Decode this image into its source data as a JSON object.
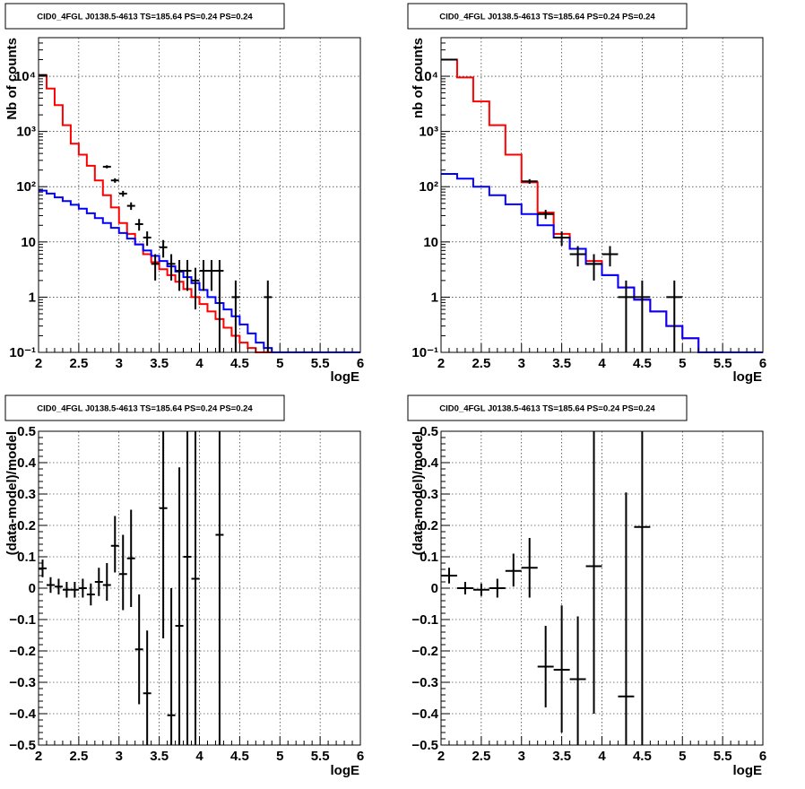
{
  "chart_data": [
    {
      "id": "top-left",
      "type": "line",
      "title": "CID0_4FGL J0138.5-4613 TS=185.64 PS=0.24 PS=0.24",
      "xlabel": "logE",
      "ylabel": "Nb of counts",
      "xlim": [
        2,
        6
      ],
      "ylim": [
        0.1,
        50000
      ],
      "yscale": "log",
      "grid": true,
      "xticks": [
        2,
        2.5,
        3,
        3.5,
        4,
        4.5,
        5,
        5.5,
        6
      ],
      "xticklabels": [
        "2",
        "2.5",
        "3",
        "3.5",
        "4",
        "4.5",
        "5",
        "5.5",
        "6"
      ],
      "yticks": [
        0.1,
        1,
        10,
        100,
        1000,
        10000
      ],
      "yticklabels": [
        "10⁻¹",
        "1",
        "10",
        "10²",
        "10³",
        "10⁴"
      ],
      "series": [
        {
          "color": "#ff0000",
          "kind": "step",
          "edges": [
            2,
            2.1,
            2.2,
            2.3,
            2.4,
            2.5,
            2.6,
            2.7,
            2.8,
            2.9,
            3.0,
            3.1,
            3.2,
            3.3,
            3.4,
            3.5,
            3.6,
            3.7,
            3.8,
            3.9,
            4.0,
            4.1,
            4.2,
            4.3,
            4.4,
            4.5,
            4.6,
            4.7,
            4.8,
            4.9,
            5.0,
            5.1,
            5.2,
            5.3,
            5.4,
            5.5,
            5.6,
            5.7,
            5.8,
            5.9,
            6.0
          ],
          "values": [
            10500,
            6000,
            3000,
            1300,
            600,
            380,
            240,
            130,
            70,
            42,
            22,
            14,
            9,
            6,
            4.3,
            3.2,
            2.5,
            1.9,
            1.4,
            1.0,
            0.75,
            0.55,
            0.4,
            0.28,
            0.2,
            0.15,
            0.12,
            0.1,
            0.1,
            0.1,
            0.1,
            0.1,
            0.1,
            0.1,
            0.1,
            0.1,
            0.1,
            0.1,
            0.1,
            0.1
          ]
        },
        {
          "color": "#0000ff",
          "kind": "step",
          "edges": [
            2,
            2.1,
            2.2,
            2.3,
            2.4,
            2.5,
            2.6,
            2.7,
            2.8,
            2.9,
            3.0,
            3.1,
            3.2,
            3.3,
            3.4,
            3.5,
            3.6,
            3.7,
            3.8,
            3.9,
            4.0,
            4.1,
            4.2,
            4.3,
            4.4,
            4.5,
            4.6,
            4.7,
            4.8,
            4.9,
            5.0,
            5.1,
            5.2,
            5.3,
            5.4,
            5.5,
            5.6,
            5.7,
            5.8,
            5.9,
            6.0
          ],
          "values": [
            85,
            75,
            64,
            55,
            47,
            40,
            33,
            27,
            22,
            18,
            14.5,
            11.5,
            9,
            7,
            5.6,
            4.5,
            3.6,
            2.9,
            2.3,
            1.8,
            1.35,
            1.0,
            0.78,
            0.6,
            0.45,
            0.32,
            0.22,
            0.15,
            0.12,
            0.1,
            0.1,
            0.1,
            0.1,
            0.1,
            0.1,
            0.1,
            0.1,
            0.1,
            0.1,
            0.1
          ]
        }
      ],
      "points": [
        {
          "x": 2.05,
          "xerr": 0.05,
          "y": 10500,
          "ylo": 10400,
          "yhi": 10600
        },
        {
          "x": 2.85,
          "xerr": 0.05,
          "y": 230,
          "ylo": 215,
          "yhi": 245
        },
        {
          "x": 2.95,
          "xerr": 0.05,
          "y": 130,
          "ylo": 118,
          "yhi": 142
        },
        {
          "x": 3.05,
          "xerr": 0.05,
          "y": 75,
          "ylo": 66,
          "yhi": 84
        },
        {
          "x": 3.15,
          "xerr": 0.05,
          "y": 45,
          "ylo": 38,
          "yhi": 52
        },
        {
          "x": 3.25,
          "xerr": 0.05,
          "y": 21,
          "ylo": 16,
          "yhi": 26
        },
        {
          "x": 3.35,
          "xerr": 0.05,
          "y": 12,
          "ylo": 8.5,
          "yhi": 15.5
        },
        {
          "x": 3.45,
          "xerr": 0.05,
          "y": 4,
          "ylo": 2,
          "yhi": 6
        },
        {
          "x": 3.55,
          "xerr": 0.05,
          "y": 8,
          "ylo": 5.2,
          "yhi": 10.8
        },
        {
          "x": 3.65,
          "xerr": 0.05,
          "y": 4,
          "ylo": 2,
          "yhi": 6
        },
        {
          "x": 3.75,
          "xerr": 0.05,
          "y": 3,
          "ylo": 1.3,
          "yhi": 4.7
        },
        {
          "x": 3.85,
          "xerr": 0.05,
          "y": 3,
          "ylo": 1.3,
          "yhi": 4.7
        },
        {
          "x": 3.95,
          "xerr": 0.05,
          "y": 2,
          "ylo": 0.6,
          "yhi": 3.4
        },
        {
          "x": 4.05,
          "xerr": 0.05,
          "y": 3,
          "ylo": 1.3,
          "yhi": 4.7
        },
        {
          "x": 4.15,
          "xerr": 0.05,
          "y": 3,
          "ylo": 1.3,
          "yhi": 4.7
        },
        {
          "x": 4.25,
          "xerr": 0.05,
          "y": 3,
          "ylo": 0.1,
          "yhi": 4.7
        },
        {
          "x": 4.45,
          "xerr": 0.05,
          "y": 1,
          "ylo": 0.1,
          "yhi": 2
        },
        {
          "x": 4.85,
          "xerr": 0.05,
          "y": 1,
          "ylo": 0.1,
          "yhi": 2
        }
      ]
    },
    {
      "id": "top-right",
      "type": "line",
      "title": "CID0_4FGL J0138.5-4613 TS=185.64 PS=0.24 PS=0.24",
      "xlabel": "logE",
      "ylabel": "nb of counts",
      "xlim": [
        2,
        6
      ],
      "ylim": [
        0.1,
        50000
      ],
      "yscale": "log",
      "grid": true,
      "xticks": [
        2,
        2.5,
        3,
        3.5,
        4,
        4.5,
        5,
        5.5,
        6
      ],
      "xticklabels": [
        "2",
        "2.5",
        "3",
        "3.5",
        "4",
        "4.5",
        "5",
        "5.5",
        "6"
      ],
      "yticks": [
        0.1,
        1,
        10,
        100,
        1000,
        10000
      ],
      "yticklabels": [
        "10⁻¹",
        "1",
        "10",
        "10²",
        "10³",
        "10⁴"
      ],
      "series": [
        {
          "color": "#ff0000",
          "kind": "step",
          "edges": [
            2,
            2.2,
            2.4,
            2.6,
            2.8,
            3.0,
            3.2,
            3.4,
            3.6,
            3.8,
            4.0,
            4.2,
            4.4,
            4.6,
            4.8,
            5.0,
            5.2,
            5.4,
            5.6,
            5.8,
            6.0
          ],
          "values": [
            20000,
            9500,
            3500,
            1300,
            380,
            120,
            34,
            14,
            7.5,
            4.5,
            2.5,
            1.5,
            0.9,
            0.55,
            0.3,
            0.18,
            0.1,
            0.1,
            0.1,
            0.1
          ]
        },
        {
          "color": "#0000ff",
          "kind": "step",
          "edges": [
            2,
            2.2,
            2.4,
            2.6,
            2.8,
            3.0,
            3.2,
            3.4,
            3.6,
            3.8,
            4.0,
            4.2,
            4.4,
            4.6,
            4.8,
            5.0,
            5.2,
            5.4,
            5.6,
            5.8,
            6.0
          ],
          "values": [
            170,
            140,
            100,
            70,
            48,
            32,
            20,
            12,
            7.5,
            4,
            2.5,
            1.5,
            0.9,
            0.55,
            0.3,
            0.18,
            0.1,
            0.1,
            0.1,
            0.1
          ]
        }
      ],
      "points": [
        {
          "x": 2.1,
          "xerr": 0.1,
          "y": 20000,
          "ylo": 19800,
          "yhi": 20200
        },
        {
          "x": 3.1,
          "xerr": 0.1,
          "y": 125,
          "ylo": 113,
          "yhi": 137
        },
        {
          "x": 3.3,
          "xerr": 0.1,
          "y": 32,
          "ylo": 26,
          "yhi": 38
        },
        {
          "x": 3.5,
          "xerr": 0.1,
          "y": 12,
          "ylo": 8.5,
          "yhi": 15.5
        },
        {
          "x": 3.7,
          "xerr": 0.1,
          "y": 6,
          "ylo": 3.6,
          "yhi": 8.4
        },
        {
          "x": 3.9,
          "xerr": 0.1,
          "y": 4,
          "ylo": 2,
          "yhi": 6
        },
        {
          "x": 4.1,
          "xerr": 0.1,
          "y": 6,
          "ylo": 3.6,
          "yhi": 8.4
        },
        {
          "x": 4.3,
          "xerr": 0.1,
          "y": 1,
          "ylo": 0.1,
          "yhi": 2
        },
        {
          "x": 4.5,
          "xerr": 0.1,
          "y": 1,
          "ylo": 0.1,
          "yhi": 2
        },
        {
          "x": 4.9,
          "xerr": 0.1,
          "y": 1,
          "ylo": 0.1,
          "yhi": 2
        }
      ]
    },
    {
      "id": "bottom-left",
      "type": "scatter",
      "title": "CID0_4FGL J0138.5-4613 TS=185.64 PS=0.24 PS=0.24",
      "xlabel": "logE",
      "ylabel": "(data-model)/model",
      "xlim": [
        2,
        6
      ],
      "ylim": [
        -0.5,
        0.5
      ],
      "yscale": "linear",
      "grid": true,
      "xticks": [
        2,
        2.5,
        3,
        3.5,
        4,
        4.5,
        5,
        5.5,
        6
      ],
      "xticklabels": [
        "2",
        "2.5",
        "3",
        "3.5",
        "4",
        "4.5",
        "5",
        "5.5",
        "6"
      ],
      "yticks": [
        -0.5,
        -0.4,
        -0.3,
        -0.2,
        -0.1,
        0,
        0.1,
        0.2,
        0.3,
        0.4,
        0.5
      ],
      "yticklabels": [
        "−0.5",
        "−0.4",
        "−0.3",
        "−0.2",
        "−0.1",
        "0",
        "0.1",
        "0.2",
        "0.3",
        "0.4",
        "0.5"
      ],
      "series": [],
      "points": [
        {
          "x": 2.05,
          "xerr": 0.05,
          "y": 0.063,
          "ylo": 0.035,
          "yhi": 0.091
        },
        {
          "x": 2.15,
          "xerr": 0.05,
          "y": 0.01,
          "ylo": -0.015,
          "yhi": 0.035
        },
        {
          "x": 2.25,
          "xerr": 0.05,
          "y": 0.005,
          "ylo": -0.02,
          "yhi": 0.03
        },
        {
          "x": 2.35,
          "xerr": 0.05,
          "y": -0.005,
          "ylo": -0.03,
          "yhi": 0.02
        },
        {
          "x": 2.45,
          "xerr": 0.05,
          "y": -0.005,
          "ylo": -0.03,
          "yhi": 0.02
        },
        {
          "x": 2.55,
          "xerr": 0.05,
          "y": 0.0,
          "ylo": -0.03,
          "yhi": 0.03
        },
        {
          "x": 2.65,
          "xerr": 0.05,
          "y": -0.02,
          "ylo": -0.055,
          "yhi": 0.015
        },
        {
          "x": 2.75,
          "xerr": 0.05,
          "y": 0.02,
          "ylo": -0.025,
          "yhi": 0.065
        },
        {
          "x": 2.85,
          "xerr": 0.05,
          "y": 0.01,
          "ylo": -0.04,
          "yhi": 0.08
        },
        {
          "x": 2.95,
          "xerr": 0.05,
          "y": 0.135,
          "ylo": 0.05,
          "yhi": 0.23
        },
        {
          "x": 3.05,
          "xerr": 0.05,
          "y": 0.045,
          "ylo": -0.07,
          "yhi": 0.17
        },
        {
          "x": 3.15,
          "xerr": 0.05,
          "y": 0.095,
          "ylo": -0.06,
          "yhi": 0.25
        },
        {
          "x": 3.25,
          "xerr": 0.05,
          "y": -0.195,
          "ylo": -0.37,
          "yhi": -0.02
        },
        {
          "x": 3.35,
          "xerr": 0.05,
          "y": -0.335,
          "ylo": -0.5,
          "yhi": -0.135
        },
        {
          "x": 3.55,
          "xerr": 0.05,
          "y": 0.255,
          "ylo": -0.16,
          "yhi": 0.5
        },
        {
          "x": 3.65,
          "xerr": 0.05,
          "y": -0.405,
          "ylo": -0.5,
          "yhi": 0.0
        },
        {
          "x": 3.75,
          "xerr": 0.05,
          "y": -0.12,
          "ylo": -0.5,
          "yhi": 0.385
        },
        {
          "x": 3.85,
          "xerr": 0.05,
          "y": 0.1,
          "ylo": -0.5,
          "yhi": 0.5
        },
        {
          "x": 3.95,
          "xerr": 0.05,
          "y": 0.03,
          "ylo": -0.5,
          "yhi": 0.5
        },
        {
          "x": 4.25,
          "xerr": 0.05,
          "y": 0.17,
          "ylo": -0.5,
          "yhi": 0.5
        }
      ]
    },
    {
      "id": "bottom-right",
      "type": "scatter",
      "title": "CID0_4FGL J0138.5-4613 TS=185.64 PS=0.24 PS=0.24",
      "xlabel": "logE",
      "ylabel": "(data-model)/model",
      "xlim": [
        2,
        6
      ],
      "ylim": [
        -0.5,
        0.5
      ],
      "yscale": "linear",
      "grid": true,
      "xticks": [
        2,
        2.5,
        3,
        3.5,
        4,
        4.5,
        5,
        5.5,
        6
      ],
      "xticklabels": [
        "2",
        "2.5",
        "3",
        "3.5",
        "4",
        "4.5",
        "5",
        "5.5",
        "6"
      ],
      "yticks": [
        -0.5,
        -0.4,
        -0.3,
        -0.2,
        -0.1,
        0,
        0.1,
        0.2,
        0.3,
        0.4,
        0.5
      ],
      "yticklabels": [
        "−0.5",
        "−0.4",
        "−0.3",
        "−0.2",
        "−0.1",
        "0",
        "0.1",
        "0.2",
        "0.3",
        "0.4",
        "0.5"
      ],
      "series": [],
      "points": [
        {
          "x": 2.1,
          "xerr": 0.1,
          "y": 0.04,
          "ylo": 0.015,
          "yhi": 0.065
        },
        {
          "x": 2.3,
          "xerr": 0.1,
          "y": 0.0,
          "ylo": -0.02,
          "yhi": 0.02
        },
        {
          "x": 2.5,
          "xerr": 0.1,
          "y": -0.005,
          "ylo": -0.025,
          "yhi": 0.015
        },
        {
          "x": 2.7,
          "xerr": 0.1,
          "y": 0.0,
          "ylo": -0.03,
          "yhi": 0.03
        },
        {
          "x": 2.9,
          "xerr": 0.1,
          "y": 0.055,
          "ylo": 0.005,
          "yhi": 0.11
        },
        {
          "x": 3.1,
          "xerr": 0.1,
          "y": 0.065,
          "ylo": -0.03,
          "yhi": 0.16
        },
        {
          "x": 3.3,
          "xerr": 0.1,
          "y": -0.25,
          "ylo": -0.38,
          "yhi": -0.12
        },
        {
          "x": 3.5,
          "xerr": 0.1,
          "y": -0.26,
          "ylo": -0.46,
          "yhi": -0.055
        },
        {
          "x": 3.7,
          "xerr": 0.1,
          "y": -0.29,
          "ylo": -0.5,
          "yhi": -0.09
        },
        {
          "x": 3.9,
          "xerr": 0.1,
          "y": 0.07,
          "ylo": -0.4,
          "yhi": 0.5
        },
        {
          "x": 4.3,
          "xerr": 0.1,
          "y": -0.345,
          "ylo": -0.5,
          "yhi": 0.305
        },
        {
          "x": 4.5,
          "xerr": 0.1,
          "y": 0.195,
          "ylo": -0.5,
          "yhi": 0.5
        }
      ]
    }
  ]
}
